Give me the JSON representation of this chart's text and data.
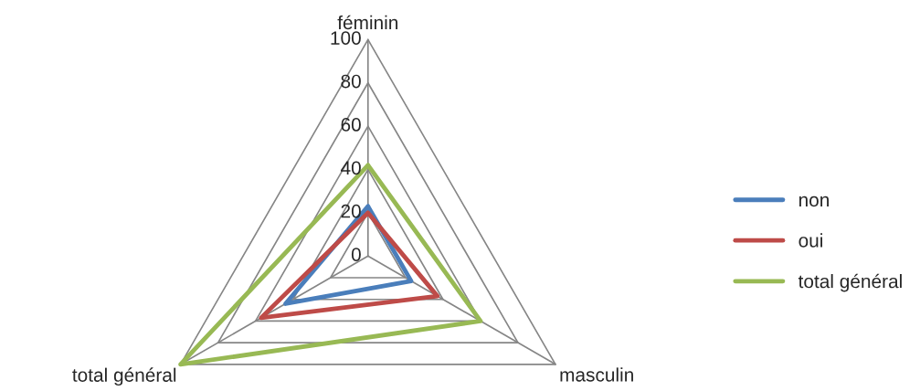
{
  "chart_data": {
    "type": "radar",
    "categories": [
      "féminin",
      "masculin",
      "total général"
    ],
    "series": [
      {
        "name": "non",
        "color": "#4a7ebb",
        "values": [
          23,
          23,
          44
        ]
      },
      {
        "name": "oui",
        "color": "#be4b48",
        "values": [
          20,
          37,
          57
        ]
      },
      {
        "name": "total général",
        "color": "#98b954",
        "values": [
          42,
          60,
          100
        ]
      }
    ],
    "ylim": [
      0,
      100
    ],
    "yticks": [
      0,
      20,
      40,
      60,
      80,
      100
    ],
    "grid": true,
    "legend": "right",
    "marker": "none",
    "line_style": "solid"
  }
}
